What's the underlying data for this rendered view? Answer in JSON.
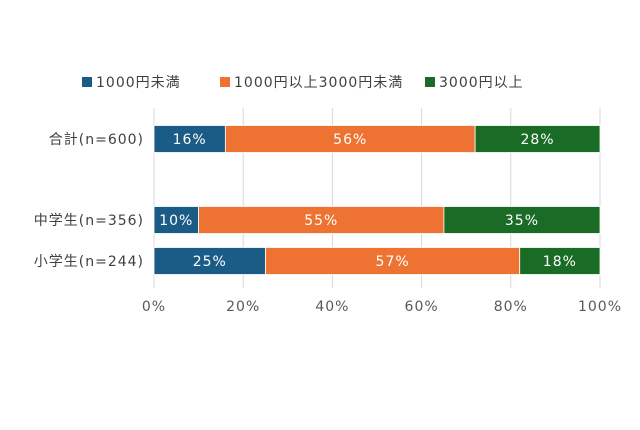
{
  "chart_data": {
    "type": "bar",
    "orientation": "horizontal",
    "stacked": true,
    "categories": [
      "合計(n=600)",
      "中学生(n=356)",
      "小学生(n=244)"
    ],
    "series": [
      {
        "name": "1000円未満",
        "values": [
          16,
          10,
          25
        ],
        "labels": [
          "16%",
          "10%",
          "25%"
        ],
        "color": "#1a5c85"
      },
      {
        "name": "1000円以上3000円未満",
        "values": [
          56,
          55,
          57
        ],
        "labels": [
          "56%",
          "55%",
          "57%"
        ],
        "color": "#ee7333"
      },
      {
        "name": "3000円以上",
        "values": [
          28,
          35,
          18
        ],
        "labels": [
          "28%",
          "35%",
          "18%"
        ],
        "color": "#1a6b25"
      }
    ],
    "xlim": [
      0,
      100
    ],
    "x_ticks": [
      "0%",
      "20%",
      "40%",
      "60%",
      "80%",
      "100%"
    ],
    "grid": true,
    "legend_position": "top"
  }
}
